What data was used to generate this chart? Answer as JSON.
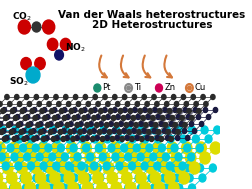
{
  "title_line1": "Van der Waals heterostructures",
  "title_line2": "2D Heterostructures",
  "title_fontsize": 7.5,
  "bg_color": "#ffffff",
  "legend_items": [
    {
      "label": "Pt",
      "color": "#1a8c6e",
      "hollow": false
    },
    {
      "label": "Ti",
      "color": "#888888",
      "hollow": true
    },
    {
      "label": "Zn",
      "color": "#cc0055",
      "hollow": false
    },
    {
      "label": "Cu",
      "color": "#d4783a",
      "hollow": true
    }
  ],
  "arrow_color": "#d4783a",
  "graphene_color": "#333333",
  "graphene2_color": "#222244",
  "mos2_S_color": "#00ccdd",
  "mos2_Mo_color": "#dddd00"
}
